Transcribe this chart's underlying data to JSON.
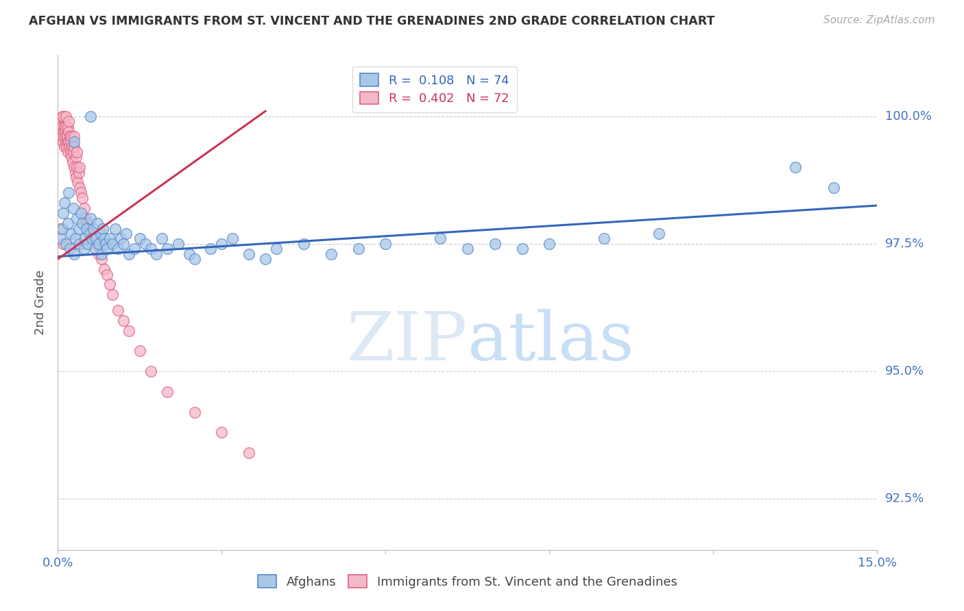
{
  "title": "AFGHAN VS IMMIGRANTS FROM ST. VINCENT AND THE GRENADINES 2ND GRADE CORRELATION CHART",
  "source": "Source: ZipAtlas.com",
  "ylabel": "2nd Grade",
  "xlim": [
    0.0,
    15.0
  ],
  "ylim": [
    91.5,
    101.2
  ],
  "yticks": [
    92.5,
    95.0,
    97.5,
    100.0
  ],
  "ytick_labels": [
    "92.5%",
    "95.0%",
    "97.5%",
    "100.0%"
  ],
  "xticks": [
    0.0,
    3.0,
    6.0,
    9.0,
    12.0,
    15.0
  ],
  "xtick_labels": [
    "0.0%",
    "",
    "",
    "",
    "",
    "15.0%"
  ],
  "blue_color": "#a8c8e8",
  "pink_color": "#f4b8c8",
  "blue_edge_color": "#5588cc",
  "pink_edge_color": "#e06080",
  "blue_line_color": "#3366bb",
  "pink_line_color": "#cc3355",
  "grid_color": "#cccccc",
  "axis_color": "#bbbbbb",
  "title_color": "#333333",
  "right_label_color": "#4472c4",
  "watermark_color": "#ddeeff",
  "blue_scatter_x": [
    0.05,
    0.08,
    0.1,
    0.12,
    0.15,
    0.18,
    0.2,
    0.22,
    0.25,
    0.28,
    0.3,
    0.32,
    0.35,
    0.38,
    0.4,
    0.42,
    0.45,
    0.48,
    0.5,
    0.52,
    0.55,
    0.58,
    0.6,
    0.62,
    0.65,
    0.68,
    0.7,
    0.72,
    0.75,
    0.78,
    0.8,
    0.82,
    0.85,
    0.88,
    0.9,
    0.95,
    1.0,
    1.05,
    1.1,
    1.15,
    1.2,
    1.25,
    1.3,
    1.4,
    1.5,
    1.6,
    1.7,
    1.8,
    1.9,
    2.0,
    2.2,
    2.4,
    2.5,
    2.8,
    3.0,
    3.2,
    3.5,
    3.8,
    4.0,
    4.5,
    5.0,
    5.5,
    6.0,
    7.0,
    7.5,
    8.0,
    8.5,
    9.0,
    10.0,
    11.0,
    13.5,
    14.2,
    0.3,
    0.6
  ],
  "blue_scatter_y": [
    97.6,
    97.8,
    98.1,
    98.3,
    97.5,
    97.9,
    98.5,
    97.4,
    97.7,
    98.2,
    97.3,
    97.6,
    98.0,
    97.8,
    97.5,
    98.1,
    97.9,
    97.4,
    97.6,
    97.8,
    97.5,
    97.7,
    98.0,
    97.6,
    97.8,
    97.4,
    97.6,
    97.9,
    97.5,
    97.7,
    97.3,
    97.8,
    97.6,
    97.5,
    97.4,
    97.6,
    97.5,
    97.8,
    97.4,
    97.6,
    97.5,
    97.7,
    97.3,
    97.4,
    97.6,
    97.5,
    97.4,
    97.3,
    97.6,
    97.4,
    97.5,
    97.3,
    97.2,
    97.4,
    97.5,
    97.6,
    97.3,
    97.2,
    97.4,
    97.5,
    97.3,
    97.4,
    97.5,
    97.6,
    97.4,
    97.5,
    97.4,
    97.5,
    97.6,
    97.7,
    99.0,
    98.6,
    99.5,
    100.0
  ],
  "pink_scatter_x": [
    0.02,
    0.04,
    0.05,
    0.06,
    0.07,
    0.08,
    0.08,
    0.09,
    0.1,
    0.1,
    0.11,
    0.12,
    0.12,
    0.13,
    0.14,
    0.15,
    0.15,
    0.15,
    0.16,
    0.17,
    0.18,
    0.18,
    0.19,
    0.2,
    0.2,
    0.2,
    0.21,
    0.22,
    0.23,
    0.24,
    0.25,
    0.25,
    0.26,
    0.27,
    0.28,
    0.3,
    0.3,
    0.3,
    0.32,
    0.33,
    0.34,
    0.35,
    0.35,
    0.36,
    0.38,
    0.4,
    0.4,
    0.42,
    0.45,
    0.48,
    0.5,
    0.55,
    0.6,
    0.65,
    0.7,
    0.75,
    0.8,
    0.85,
    0.9,
    0.95,
    1.0,
    1.1,
    1.2,
    1.3,
    1.5,
    1.7,
    2.0,
    2.5,
    3.0,
    3.5,
    0.05,
    0.1
  ],
  "pink_scatter_y": [
    99.8,
    99.7,
    99.9,
    99.8,
    99.6,
    99.8,
    100.0,
    99.7,
    99.5,
    100.0,
    99.6,
    99.8,
    99.4,
    99.7,
    99.5,
    99.8,
    99.6,
    100.0,
    99.4,
    99.6,
    99.5,
    99.8,
    99.3,
    99.5,
    99.7,
    99.9,
    99.4,
    99.6,
    99.3,
    99.5,
    99.2,
    99.6,
    99.4,
    99.1,
    99.3,
    99.0,
    99.4,
    99.6,
    98.9,
    99.2,
    98.8,
    99.0,
    99.3,
    98.7,
    98.9,
    98.6,
    99.0,
    98.5,
    98.4,
    98.2,
    98.0,
    97.9,
    97.7,
    97.6,
    97.5,
    97.3,
    97.2,
    97.0,
    96.9,
    96.7,
    96.5,
    96.2,
    96.0,
    95.8,
    95.4,
    95.0,
    94.6,
    94.2,
    93.8,
    93.4,
    97.8,
    97.5
  ],
  "blue_trend_x": [
    0.0,
    15.0
  ],
  "blue_trend_y": [
    97.25,
    98.25
  ],
  "pink_trend_x": [
    0.0,
    3.8
  ],
  "pink_trend_y": [
    97.2,
    100.1
  ]
}
